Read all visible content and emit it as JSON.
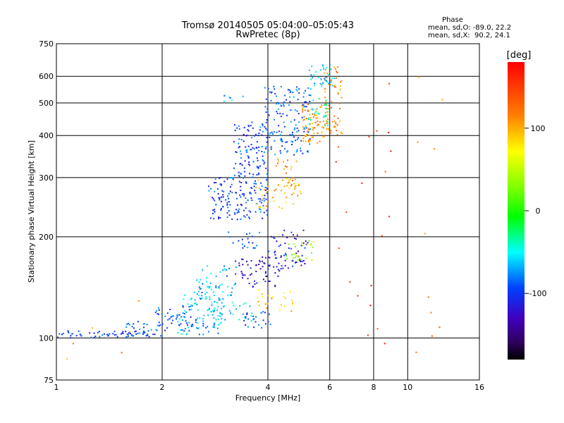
{
  "chart_data": {
    "type": "scatter",
    "title": "Tromsø 20140505 05:04:00–05:05:43",
    "subtitle": "RwPretec (8p)",
    "xlabel": "Frequency [MHz]",
    "ylabel": "Stationary phase Virtual Height [km]",
    "x_scale": "log",
    "y_scale": "log",
    "xlim": [
      1,
      16
    ],
    "ylim": [
      75,
      750
    ],
    "x_ticks": [
      "1",
      "2",
      "4",
      "6",
      "8",
      "10",
      "16"
    ],
    "y_ticks": [
      "75",
      "100",
      "200",
      "300",
      "400",
      "500",
      "600",
      "750"
    ],
    "x_grid": [
      2,
      4,
      6,
      8,
      10
    ],
    "y_grid": [
      100,
      200,
      300,
      400,
      500,
      600
    ],
    "stats": {
      "heading": "Phase",
      "o_line": "mean, sd,O: -89.0, 22.2",
      "x_line": "mean, sd,X:  90.2, 24.1"
    },
    "colorbar": {
      "label": "[deg]",
      "range": [
        -180,
        180
      ],
      "ticks": [
        "100",
        "0",
        "-100"
      ],
      "tick_values": [
        100,
        0,
        -100
      ]
    },
    "clusters": [
      {
        "x0": 1.0,
        "x1": 1.85,
        "y0": 100,
        "y1": 105,
        "phase": -95,
        "n": 60
      },
      {
        "x0": 1.55,
        "x1": 2.0,
        "y0": 100,
        "y1": 112,
        "phase": -90,
        "n": 25
      },
      {
        "x0": 1.9,
        "x1": 2.5,
        "y0": 105,
        "y1": 125,
        "phase": -95,
        "n": 50
      },
      {
        "x0": 2.2,
        "x1": 2.9,
        "y0": 102,
        "y1": 118,
        "phase": -70,
        "n": 45
      },
      {
        "x0": 2.3,
        "x1": 3.0,
        "y0": 118,
        "y1": 145,
        "phase": -60,
        "n": 55
      },
      {
        "x0": 2.5,
        "x1": 3.3,
        "y0": 130,
        "y1": 165,
        "phase": -70,
        "n": 40
      },
      {
        "x0": 2.8,
        "x1": 3.6,
        "y0": 108,
        "y1": 130,
        "phase": -60,
        "n": 35
      },
      {
        "x0": 3.2,
        "x1": 4.4,
        "y0": 140,
        "y1": 175,
        "phase": -120,
        "n": 60
      },
      {
        "x0": 3.4,
        "x1": 4.1,
        "y0": 105,
        "y1": 120,
        "phase": -90,
        "n": 25
      },
      {
        "x0": 3.7,
        "x1": 4.7,
        "y0": 120,
        "y1": 140,
        "phase": 90,
        "n": 25
      },
      {
        "x0": 4.0,
        "x1": 5.2,
        "y0": 160,
        "y1": 210,
        "phase": -110,
        "n": 60
      },
      {
        "x0": 4.5,
        "x1": 5.4,
        "y0": 170,
        "y1": 195,
        "phase": 30,
        "n": 25
      },
      {
        "x0": 3.0,
        "x1": 3.8,
        "y0": 185,
        "y1": 210,
        "phase": -90,
        "n": 20
      },
      {
        "x0": 2.7,
        "x1": 4.0,
        "y0": 225,
        "y1": 300,
        "phase": -95,
        "n": 150
      },
      {
        "x0": 3.2,
        "x1": 4.0,
        "y0": 300,
        "y1": 440,
        "phase": -95,
        "n": 110
      },
      {
        "x0": 3.9,
        "x1": 5.3,
        "y0": 350,
        "y1": 560,
        "phase": -90,
        "n": 150
      },
      {
        "x0": 3.7,
        "x1": 5.0,
        "y0": 240,
        "y1": 300,
        "phase": 100,
        "n": 40
      },
      {
        "x0": 4.2,
        "x1": 4.9,
        "y0": 280,
        "y1": 340,
        "phase": 110,
        "n": 30
      },
      {
        "x0": 5.0,
        "x1": 5.8,
        "y0": 380,
        "y1": 500,
        "phase": 110,
        "n": 70
      },
      {
        "x0": 5.8,
        "x1": 6.5,
        "y0": 400,
        "y1": 640,
        "phase": 110,
        "n": 70
      },
      {
        "x0": 5.2,
        "x1": 6.2,
        "y0": 560,
        "y1": 650,
        "phase": -60,
        "n": 35
      },
      {
        "x0": 5.2,
        "x1": 6.0,
        "y0": 420,
        "y1": 520,
        "phase": -40,
        "n": 30
      },
      {
        "x0": 3.0,
        "x1": 3.5,
        "y0": 500,
        "y1": 530,
        "phase": -70,
        "n": 6
      },
      {
        "x0": 6.2,
        "x1": 9.0,
        "y0": 95,
        "y1": 650,
        "phase": 160,
        "n": 22
      },
      {
        "x0": 10.5,
        "x1": 13.0,
        "y0": 90,
        "y1": 650,
        "phase": 120,
        "n": 10
      },
      {
        "x0": 1.0,
        "x1": 2.0,
        "y0": 75,
        "y1": 135,
        "phase": 110,
        "n": 6
      }
    ]
  }
}
